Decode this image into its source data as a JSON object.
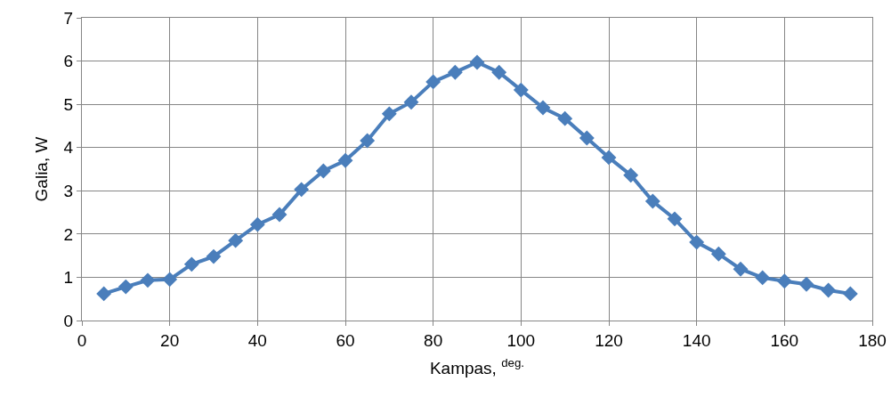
{
  "chart_data": {
    "type": "line",
    "xlabel": "Kampas, $^{deg.}$",
    "ylabel": "Galia, W",
    "x": [
      5,
      10,
      15,
      20,
      25,
      30,
      35,
      40,
      45,
      50,
      55,
      60,
      65,
      70,
      75,
      80,
      85,
      90,
      95,
      100,
      105,
      110,
      115,
      120,
      125,
      130,
      135,
      140,
      145,
      150,
      155,
      160,
      165,
      170,
      175
    ],
    "series": [
      {
        "color": "#4a7ebb",
        "values": [
          0.62,
          0.78,
          0.93,
          0.95,
          1.3,
          1.48,
          1.85,
          2.22,
          2.45,
          3.03,
          3.46,
          3.7,
          4.16,
          4.78,
          5.05,
          5.52,
          5.74,
          5.97,
          5.74,
          5.33,
          4.92,
          4.67,
          4.22,
          3.77,
          3.36,
          2.76,
          2.35,
          1.81,
          1.54,
          1.19,
          0.99,
          0.91,
          0.84,
          0.7,
          0.62
        ]
      }
    ],
    "xlim": [
      0,
      180
    ],
    "xticks": [
      0,
      20,
      40,
      60,
      80,
      100,
      120,
      140,
      160,
      180
    ],
    "ylim": [
      0,
      7
    ],
    "yticks": [
      0,
      1,
      2,
      3,
      4,
      5,
      6,
      7
    ],
    "grid": true,
    "marker": "diamond",
    "line_style": "solid"
  }
}
